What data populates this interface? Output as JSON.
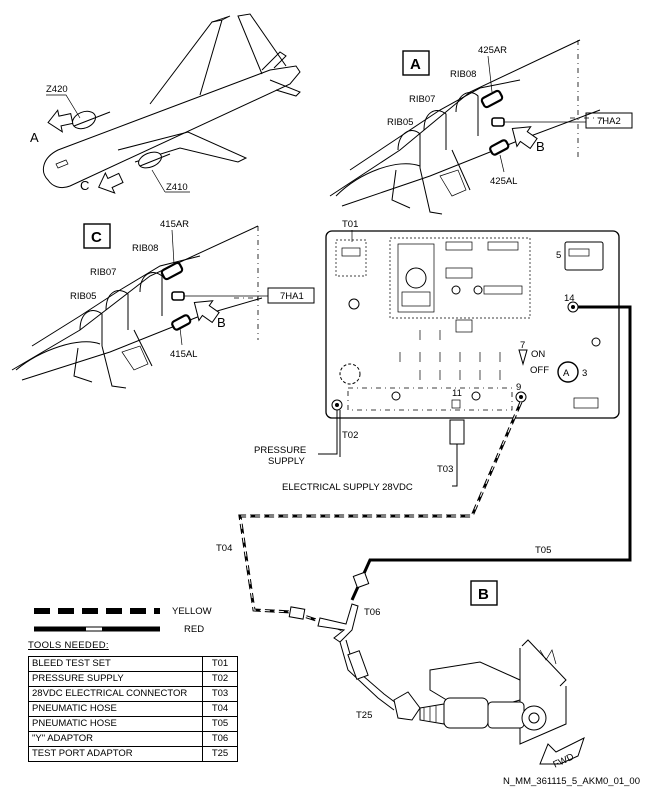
{
  "view_labels": {
    "a": "A",
    "b": "B",
    "c": "C"
  },
  "aircraft": {
    "zone_upper": "Z420",
    "zone_lower": "Z410"
  },
  "view_a": {
    "panel_right": "425AR",
    "panel_left": "425AL",
    "rib_1": "RIB05",
    "rib_2": "RIB07",
    "rib_3": "RIB08",
    "valve": "7HA2"
  },
  "view_c": {
    "panel_right": "415AR",
    "panel_left": "415AL",
    "rib_1": "RIB05",
    "rib_2": "RIB07",
    "rib_3": "RIB08",
    "valve": "7HA1"
  },
  "test_set": {
    "tool": "T01",
    "item_5": "5",
    "item_14": "14",
    "item_7": "7",
    "item_9": "9",
    "item_11": "11",
    "item_3": "3",
    "switch_on": "ON",
    "switch_off": "OFF",
    "gauge": "A"
  },
  "connections": {
    "pressure_tool": "T02",
    "pressure_label_1": "PRESSURE",
    "pressure_label_2": "SUPPLY",
    "elec_tool": "T03",
    "elec_label": "ELECTRICAL SUPPLY 28VDC",
    "hose_1": "T04",
    "hose_2": "T05",
    "y_adaptor": "T06",
    "port_adaptor": "T25",
    "fwd": "FWD"
  },
  "legend": {
    "yellow": "YELLOW",
    "red": "RED"
  },
  "tools_needed": {
    "title": "TOOLS NEEDED:",
    "rows": [
      {
        "name": "BLEED TEST SET",
        "code": "T01"
      },
      {
        "name": "PRESSURE SUPPLY",
        "code": "T02"
      },
      {
        "name": "28VDC ELECTRICAL CONNECTOR",
        "code": "T03"
      },
      {
        "name": "PNEUMATIC HOSE",
        "code": "T04"
      },
      {
        "name": "PNEUMATIC HOSE",
        "code": "T05"
      },
      {
        "name": "\"Y\" ADAPTOR",
        "code": "T06"
      },
      {
        "name": "TEST PORT ADAPTOR",
        "code": "T25"
      }
    ]
  },
  "figure_ref": "N_MM_361115_5_AKM0_01_00"
}
